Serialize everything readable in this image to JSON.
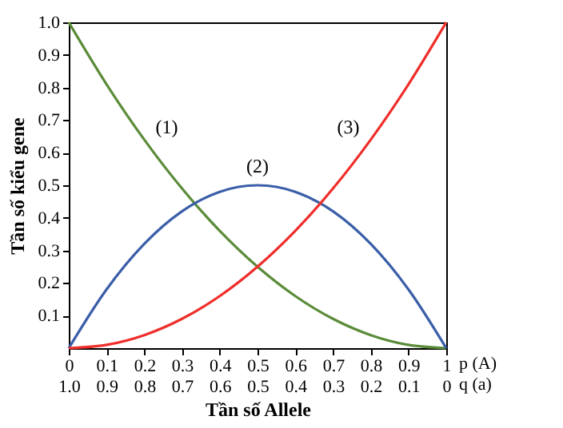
{
  "chart_data": {
    "type": "line",
    "xlabel": "Tần số Allele",
    "ylabel": "Tần số kiểu gene",
    "x": [
      0,
      0.1,
      0.2,
      0.3,
      0.4,
      0.5,
      0.6,
      0.7,
      0.8,
      0.9,
      1
    ],
    "series": [
      {
        "name": "(1)",
        "color": "#5b8c3a",
        "values": [
          1,
          0.81,
          0.64,
          0.49,
          0.36,
          0.25,
          0.16,
          0.09,
          0.04,
          0.01,
          0
        ]
      },
      {
        "name": "(2)",
        "color": "#3a5ea8",
        "values": [
          0,
          0.18,
          0.32,
          0.42,
          0.48,
          0.5,
          0.48,
          0.42,
          0.32,
          0.18,
          0
        ]
      },
      {
        "name": "(3)",
        "color": "#ee2e2a",
        "values": [
          0,
          0.01,
          0.04,
          0.09,
          0.16,
          0.25,
          0.36,
          0.49,
          0.64,
          0.81,
          1
        ]
      }
    ],
    "xlim": [
      0,
      1
    ],
    "xticks": [
      {
        "value": 0,
        "label": "0"
      },
      0.1,
      0.2,
      0.3,
      0.4,
      0.5,
      0.6,
      0.7,
      0.8,
      0.9,
      1
    ],
    "x2lim": [
      1,
      0
    ],
    "x2ticks": [
      {
        "value": 1,
        "label": "1.0"
      },
      0.9,
      0.8,
      0.7,
      0.6,
      0.5,
      0.4,
      0.3,
      0.2,
      0.1,
      {
        "value": 0,
        "label": "0"
      }
    ],
    "ylim": [
      0,
      1
    ],
    "yticks": [
      0.1,
      0.2,
      0.3,
      0.4,
      0.5,
      0.6,
      0.7,
      0.8,
      0.9,
      {
        "value": 1,
        "label": "1.0"
      }
    ],
    "annotations": [
      "p (A)",
      "q (a)"
    ],
    "grid": false,
    "legend": false,
    "marker": "none",
    "line_style": "solid"
  }
}
